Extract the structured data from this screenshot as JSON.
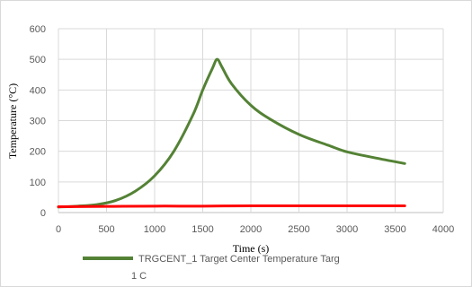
{
  "chart_data": {
    "type": "line",
    "xlabel": "Time (s)",
    "ylabel": "Temperature (°C)",
    "xlim": [
      0,
      4000
    ],
    "ylim": [
      0,
      600
    ],
    "x_ticks": [
      0,
      500,
      1000,
      1500,
      2000,
      2500,
      3000,
      3500,
      4000
    ],
    "y_ticks": [
      0,
      100,
      200,
      300,
      400,
      500,
      600
    ],
    "grid": true,
    "legend_position": "bottom",
    "series": [
      {
        "name": "TRGCENT_1 Target Center Temperature Targ 1 C",
        "color": "#548235",
        "x": [
          0,
          200,
          400,
          600,
          800,
          1000,
          1200,
          1400,
          1500,
          1600,
          1650,
          1700,
          1800,
          2000,
          2200,
          2500,
          2800,
          3000,
          3300,
          3600
        ],
        "y": [
          18,
          21,
          26,
          40,
          70,
          120,
          200,
          320,
          400,
          470,
          500,
          475,
          420,
          350,
          305,
          255,
          220,
          198,
          178,
          160
        ]
      },
      {
        "name": "",
        "color": "#ff0000",
        "x": [
          0,
          500,
          1000,
          1500,
          2000,
          2500,
          3000,
          3600
        ],
        "y": [
          19,
          20,
          21,
          21,
          22,
          22,
          22,
          22
        ]
      }
    ]
  },
  "legend": {
    "line1": "TRGCENT_1 Target Center Temperature Targ",
    "line2": "1 C"
  }
}
